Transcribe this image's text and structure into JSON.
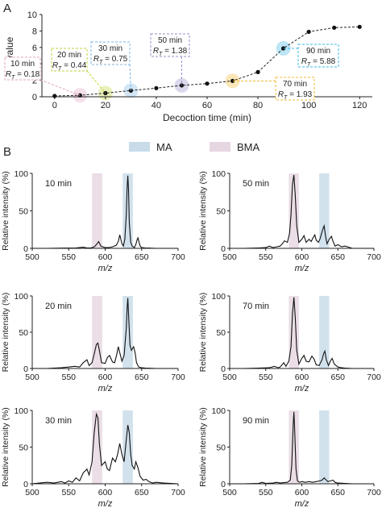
{
  "panel_labels": {
    "a": "A",
    "b": "B"
  },
  "legend_top": [
    {
      "label": "MA",
      "color": "#c7dbe8"
    },
    {
      "label": "BMA",
      "color": "#e6d6e1"
    }
  ],
  "chart_data": [
    {
      "type": "line",
      "panel": "A",
      "title": "",
      "xlabel": "Decoction time (min)",
      "ylabel": "R_T-value",
      "xlim": [
        -5,
        125
      ],
      "ylim": [
        0,
        10
      ],
      "xticks": [
        0,
        20,
        40,
        60,
        80,
        100,
        120
      ],
      "yticks": [
        0,
        2,
        4,
        6,
        8,
        10
      ],
      "x": [
        0,
        10,
        20,
        30,
        40,
        50,
        60,
        70,
        80,
        90,
        100,
        110,
        120
      ],
      "y": [
        0.1,
        0.18,
        0.44,
        0.75,
        1.05,
        1.38,
        1.6,
        1.93,
        3.0,
        5.88,
        7.9,
        8.4,
        8.5
      ],
      "grid": false,
      "annotations": [
        {
          "time": "10 min",
          "label": "R_T = 0.18",
          "x": 10,
          "y": 0.18,
          "color": "#e0a3c2"
        },
        {
          "time": "20 min",
          "label": "R_T = 0.44",
          "x": 20,
          "y": 0.44,
          "color": "#c6d23a"
        },
        {
          "time": "30 min",
          "label": "R_T = 0.75",
          "x": 30,
          "y": 0.75,
          "color": "#7fb6e2"
        },
        {
          "time": "50 min",
          "label": "R_T = 1.38",
          "x": 50,
          "y": 1.38,
          "color": "#9a8fc9"
        },
        {
          "time": "70 min",
          "label": "R_T = 1.93",
          "x": 70,
          "y": 1.93,
          "color": "#f2b830"
        },
        {
          "time": "90 min",
          "label": "R_T = 5.88",
          "x": 90,
          "y": 5.88,
          "color": "#3fb8e6"
        }
      ]
    },
    {
      "type": "line",
      "panel": "B",
      "title": "10 min",
      "xlabel": "m/z",
      "ylabel": "Relative intensity (%)",
      "xlim": [
        500,
        700
      ],
      "ylim": [
        0,
        100
      ],
      "xticks": [
        500,
        550,
        600,
        650,
        700
      ],
      "yticks": [
        0,
        50,
        100
      ],
      "highlight_bands": [
        {
          "type": "BMA",
          "center": 589
        },
        {
          "type": "MA",
          "center": 631
        }
      ],
      "x": [
        500,
        520,
        545,
        560,
        570,
        575,
        580,
        585,
        588,
        591,
        594,
        600,
        605,
        610,
        615,
        618,
        620,
        623,
        625,
        627,
        629,
        630,
        631,
        632,
        633,
        635,
        637,
        640,
        642,
        644,
        645,
        646,
        648,
        650,
        655,
        660,
        670,
        700
      ],
      "y": [
        0,
        0,
        0.3,
        0.5,
        1.5,
        0.5,
        0.5,
        2,
        5,
        9,
        3,
        1,
        1,
        2,
        4,
        9,
        18,
        6,
        3,
        12,
        45,
        80,
        97,
        78,
        35,
        8,
        3,
        1,
        5,
        12,
        14,
        10,
        3,
        1,
        0.5,
        0.3,
        0,
        0
      ]
    },
    {
      "type": "line",
      "panel": "B",
      "title": "50 min",
      "xlabel": "m/z",
      "ylabel": "Relative intensity (%)",
      "xlim": [
        500,
        700
      ],
      "ylim": [
        0,
        100
      ],
      "xticks": [
        500,
        550,
        600,
        650,
        700
      ],
      "yticks": [
        0,
        50,
        100
      ],
      "highlight_bands": [
        {
          "type": "BMA",
          "center": 589
        },
        {
          "type": "MA",
          "center": 631
        }
      ],
      "x": [
        500,
        520,
        540,
        550,
        555,
        560,
        565,
        570,
        573,
        576,
        580,
        583,
        585,
        587,
        589,
        591,
        593,
        596,
        600,
        603,
        606,
        610,
        613,
        615,
        618,
        620,
        623,
        625,
        628,
        630,
        631,
        633,
        635,
        638,
        641,
        643,
        646,
        650,
        655,
        660,
        670,
        700
      ],
      "y": [
        0,
        0,
        0.5,
        1,
        3,
        1,
        2,
        3,
        6,
        10,
        8,
        20,
        45,
        85,
        98,
        70,
        30,
        8,
        12,
        17,
        8,
        12,
        9,
        13,
        18,
        11,
        8,
        12,
        22,
        28,
        30,
        16,
        6,
        12,
        16,
        10,
        3,
        5,
        2,
        3,
        0,
        0
      ]
    },
    {
      "type": "line",
      "panel": "B",
      "title": "20 min",
      "xlabel": "m/z",
      "ylabel": "Relative intensity (%)",
      "xlim": [
        500,
        700
      ],
      "ylim": [
        0,
        100
      ],
      "xticks": [
        500,
        550,
        600,
        650,
        700
      ],
      "yticks": [
        0,
        50,
        100
      ],
      "highlight_bands": [
        {
          "type": "BMA",
          "center": 589
        },
        {
          "type": "MA",
          "center": 631
        }
      ],
      "x": [
        500,
        520,
        540,
        550,
        558,
        565,
        570,
        575,
        578,
        582,
        585,
        588,
        590,
        592,
        595,
        600,
        603,
        606,
        610,
        613,
        616,
        618,
        620,
        623,
        626,
        629,
        630,
        631,
        632,
        634,
        636,
        639,
        641,
        643,
        646,
        650,
        655,
        660,
        670,
        700
      ],
      "y": [
        0,
        0,
        1,
        2,
        3,
        2,
        8,
        12,
        4,
        8,
        20,
        33,
        35,
        25,
        8,
        7,
        15,
        18,
        9,
        8,
        20,
        30,
        22,
        10,
        18,
        55,
        82,
        97,
        75,
        32,
        25,
        30,
        22,
        8,
        2,
        1,
        0.5,
        0.3,
        0,
        0
      ]
    },
    {
      "type": "line",
      "panel": "B",
      "title": "70 min",
      "xlabel": "m/z",
      "ylabel": "Relative intensity (%)",
      "xlim": [
        500,
        700
      ],
      "ylim": [
        0,
        100
      ],
      "xticks": [
        500,
        550,
        600,
        650,
        700
      ],
      "yticks": [
        0,
        50,
        100
      ],
      "highlight_bands": [
        {
          "type": "BMA",
          "center": 589
        },
        {
          "type": "MA",
          "center": 631
        }
      ],
      "x": [
        500,
        520,
        540,
        555,
        562,
        567,
        570,
        575,
        578,
        582,
        585,
        587,
        589,
        591,
        593,
        596,
        600,
        603,
        606,
        610,
        614,
        617,
        620,
        624,
        628,
        630,
        632,
        634,
        637,
        640,
        642,
        645,
        650,
        655,
        660,
        670,
        700
      ],
      "y": [
        0,
        0,
        0.5,
        1,
        3,
        1,
        2,
        8,
        3,
        10,
        30,
        75,
        98,
        70,
        25,
        6,
        14,
        18,
        10,
        9,
        17,
        13,
        5,
        4,
        12,
        20,
        24,
        12,
        4,
        11,
        14,
        6,
        2,
        1,
        0.5,
        0,
        0
      ]
    },
    {
      "type": "line",
      "panel": "B",
      "title": "30 min",
      "xlabel": "m/z",
      "ylabel": "Relative intensity (%)",
      "xlim": [
        500,
        700
      ],
      "ylim": [
        0,
        100
      ],
      "xticks": [
        500,
        550,
        600,
        650,
        700
      ],
      "yticks": [
        0,
        50,
        100
      ],
      "highlight_bands": [
        {
          "type": "BMA",
          "center": 589
        },
        {
          "type": "MA",
          "center": 631
        }
      ],
      "x": [
        500,
        510,
        520,
        530,
        540,
        545,
        550,
        555,
        560,
        565,
        570,
        575,
        578,
        582,
        585,
        588,
        590,
        592,
        595,
        598,
        600,
        603,
        606,
        610,
        614,
        617,
        620,
        623,
        626,
        629,
        631,
        633,
        635,
        637,
        640,
        642,
        645,
        648,
        652,
        656,
        660,
        665,
        670,
        680,
        690,
        700
      ],
      "y": [
        0,
        1,
        2,
        1,
        3,
        1,
        4,
        2,
        8,
        4,
        15,
        20,
        12,
        30,
        70,
        95,
        90,
        55,
        25,
        28,
        30,
        20,
        18,
        35,
        30,
        40,
        55,
        40,
        30,
        60,
        80,
        70,
        40,
        25,
        20,
        30,
        22,
        10,
        5,
        6,
        3,
        1,
        2,
        1,
        0.5,
        0
      ]
    },
    {
      "type": "line",
      "panel": "B",
      "title": "90 min",
      "xlabel": "m/z",
      "ylabel": "Relative intensity (%)",
      "xlim": [
        500,
        700
      ],
      "ylim": [
        0,
        100
      ],
      "xticks": [
        500,
        550,
        600,
        650,
        700
      ],
      "yticks": [
        0,
        50,
        100
      ],
      "highlight_bands": [
        {
          "type": "BMA",
          "center": 589
        },
        {
          "type": "MA",
          "center": 631
        }
      ],
      "x": [
        500,
        520,
        540,
        545,
        550,
        560,
        565,
        570,
        575,
        580,
        584,
        586,
        588,
        589,
        590,
        592,
        594,
        597,
        600,
        605,
        610,
        615,
        620,
        625,
        628,
        631,
        633,
        636,
        640,
        643,
        646,
        650,
        660,
        670,
        700
      ],
      "y": [
        0,
        0,
        0.5,
        2,
        0.5,
        1,
        2,
        1,
        1.5,
        2,
        5,
        25,
        80,
        98,
        75,
        20,
        4,
        2,
        3,
        2,
        3,
        2,
        3,
        4,
        5,
        8,
        6,
        3,
        4,
        5,
        2,
        1,
        0.5,
        0,
        0
      ]
    }
  ]
}
